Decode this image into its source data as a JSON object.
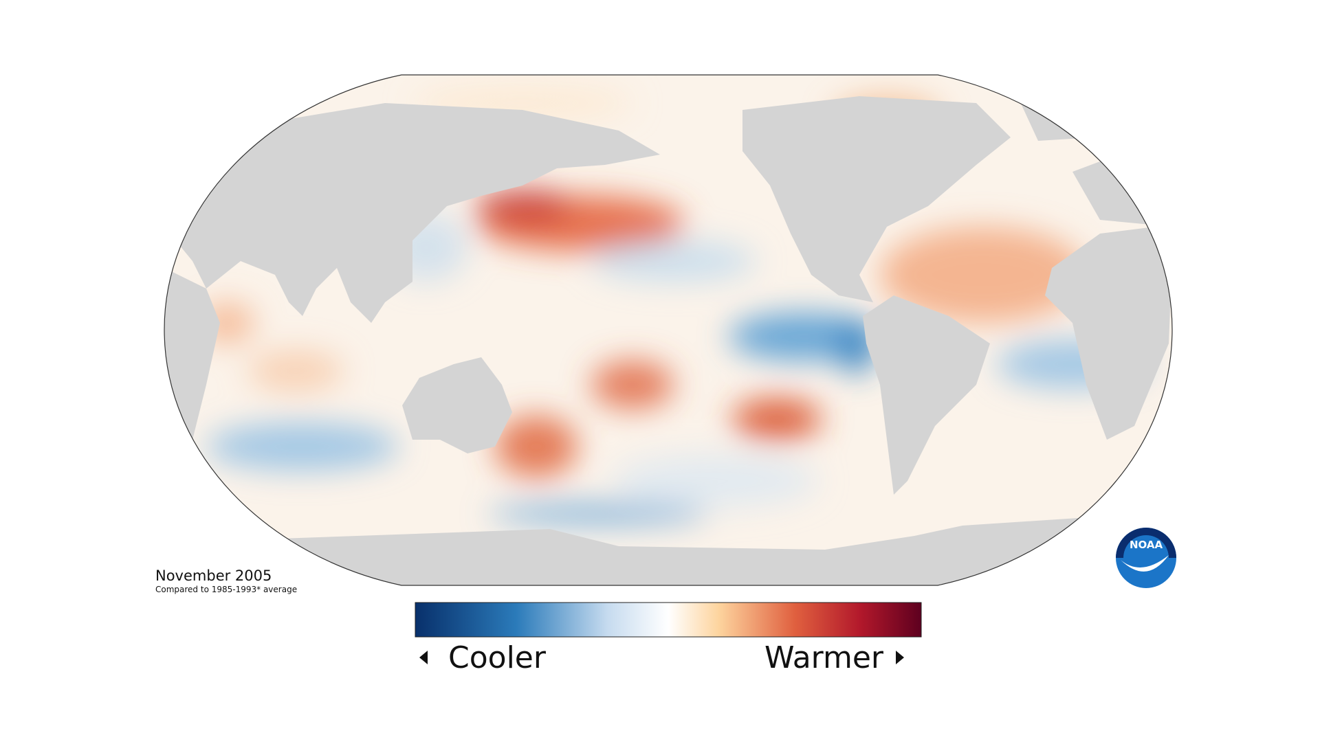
{
  "map": {
    "date": "November 2005",
    "baseline_note": "Compared to 1985-1993* average"
  },
  "legend": {
    "low_label": "Cooler",
    "high_label": "Warmer"
  },
  "logo": {
    "text": "NOAA"
  }
}
